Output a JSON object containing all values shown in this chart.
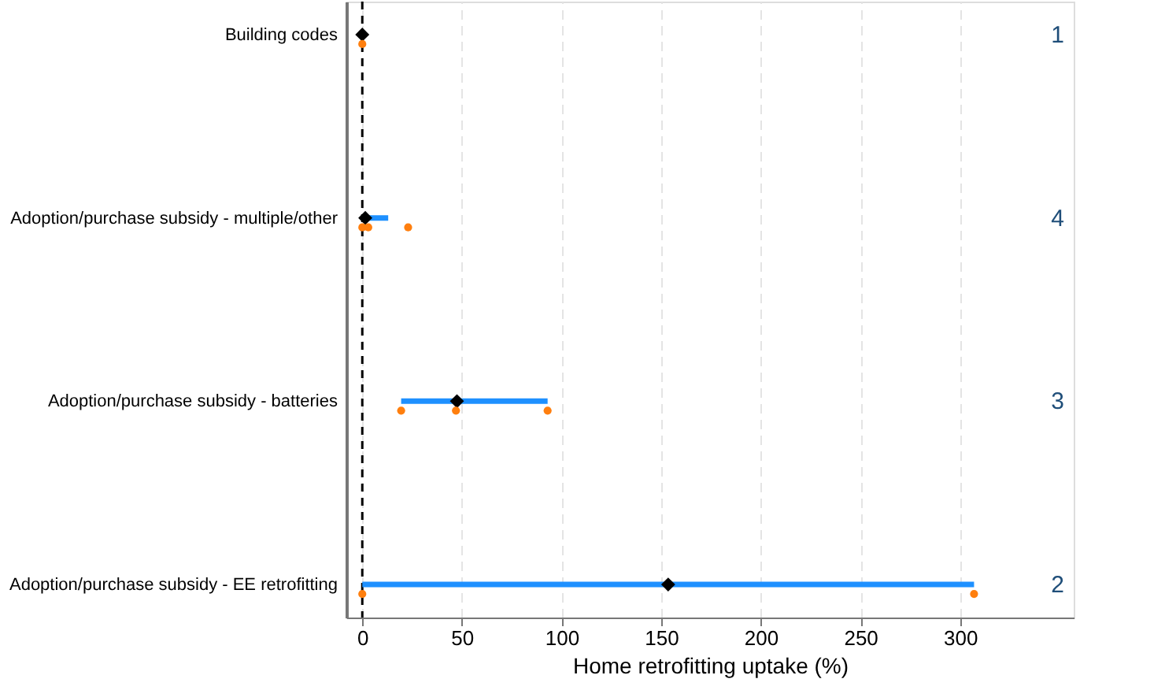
{
  "chart_data": {
    "type": "scatter",
    "orientation": "horizontal",
    "xlabel": "Home retrofitting uptake (%)",
    "categories": [
      "Building codes",
      "Adoption/purchase subsidy - multiple/other",
      "Adoption/purchase subsidy - batteries",
      "Adoption/purchase subsidy - EE retrofitting"
    ],
    "xlim": [
      -8,
      357
    ],
    "xticks": [
      0,
      50,
      100,
      150,
      200,
      250,
      300
    ],
    "grid": "x",
    "series": [
      {
        "marker": "diamond",
        "color": "#000000",
        "values": [
          0,
          1.5,
          47.5,
          153.5
        ],
        "errors": [
          null,
          [
            0,
            13
          ],
          [
            19.5,
            93
          ],
          [
            0,
            307
          ]
        ]
      },
      {
        "marker": "circle",
        "color": "#ff7f0e",
        "x": [
          "Building codes",
          "Adoption/purchase subsidy - multiple/other",
          "Adoption/purchase subsidy - multiple/other",
          "Adoption/purchase subsidy - multiple/other",
          "Adoption/purchase subsidy - batteries",
          "Adoption/purchase subsidy - batteries",
          "Adoption/purchase subsidy - batteries",
          "Adoption/purchase subsidy - EE retrofitting",
          "Adoption/purchase subsidy - EE retrofitting"
        ],
        "values": [
          0,
          0,
          3,
          23,
          19.5,
          47,
          93,
          0,
          307
        ]
      }
    ],
    "ref_lines": [
      {
        "axis": "x",
        "value": 0,
        "color": "#000000",
        "line_style": "dashed"
      }
    ],
    "annotations": [
      "1",
      "4",
      "3",
      "2"
    ]
  }
}
